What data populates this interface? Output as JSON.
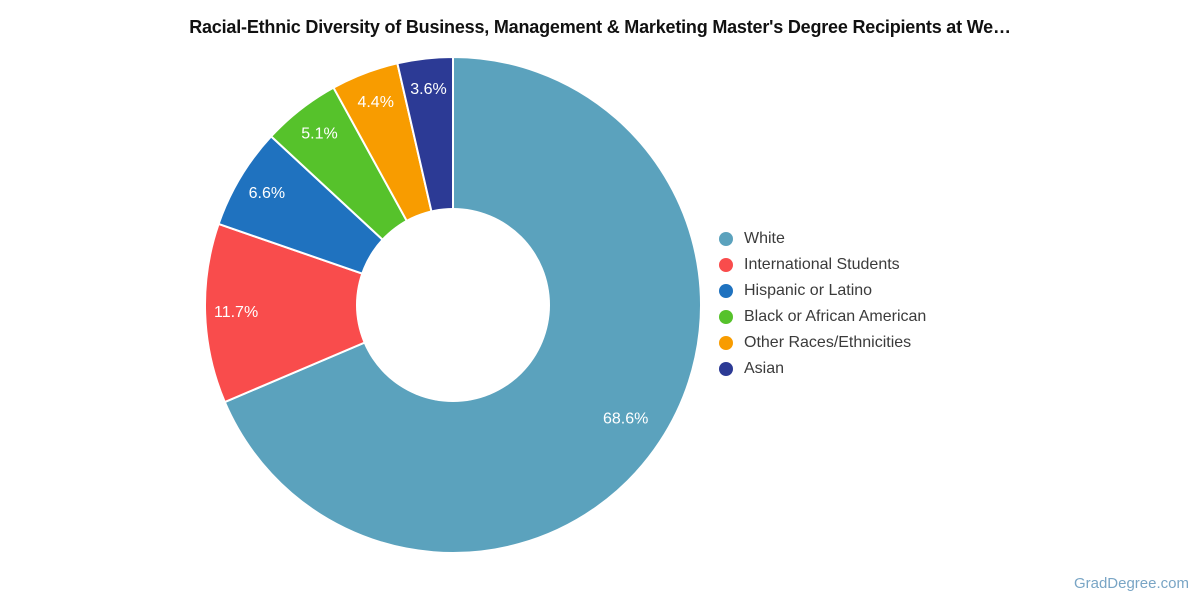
{
  "chart_data": {
    "type": "pie",
    "donut": true,
    "title": "Racial-Ethnic Diversity of Business, Management & Marketing Master's Degree Recipients at We…",
    "labels": [
      "White",
      "International Students",
      "Hispanic or Latino",
      "Black or African American",
      "Other Races/Ethnicities",
      "Asian"
    ],
    "values": [
      68.6,
      11.7,
      6.6,
      5.1,
      4.4,
      3.6
    ],
    "value_labels": [
      "68.6%",
      "11.7%",
      "6.6%",
      "5.1%",
      "4.4%",
      "3.6%"
    ],
    "colors": [
      "#5ba2bd",
      "#f94c4c",
      "#1f72bf",
      "#56c22b",
      "#f89c00",
      "#2c3a95"
    ],
    "hole_ratio": 0.391,
    "start_angle_deg": 0,
    "direction": "clockwise",
    "legend_position": "right",
    "slice_label_color": "#ffffff"
  },
  "watermark": "GradDegree.com"
}
